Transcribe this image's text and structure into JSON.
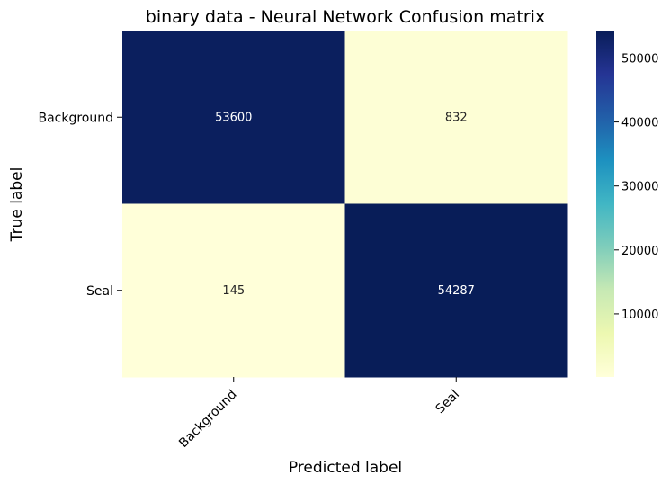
{
  "chart_data": {
    "type": "heatmap",
    "title": "binary data - Neural Network Confusion matrix",
    "xlabel": "Predicted label",
    "ylabel": "True label",
    "x_categories": [
      "Background",
      "Seal"
    ],
    "y_categories": [
      "Background",
      "Seal"
    ],
    "values": [
      [
        53600,
        832
      ],
      [
        145,
        54287
      ]
    ],
    "colormap": "YlGnBu",
    "colorbar": {
      "range": [
        145,
        54287
      ],
      "ticks": [
        10000,
        20000,
        30000,
        40000,
        50000
      ]
    },
    "grid": false
  }
}
